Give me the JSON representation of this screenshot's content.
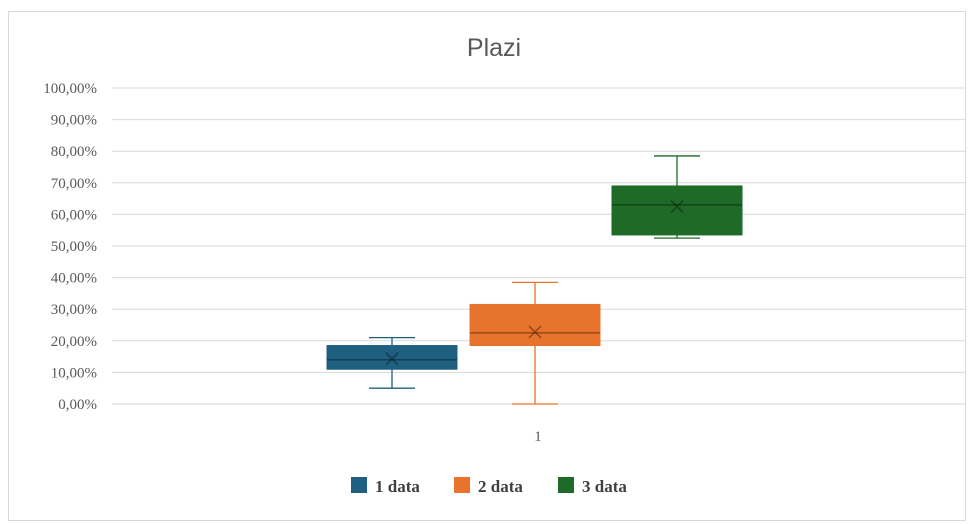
{
  "chart_data": {
    "type": "box",
    "title": "Plazi",
    "xlabel": "",
    "ylabel": "",
    "categories": [
      "1"
    ],
    "y_ticks": [
      "0,00%",
      "10,00%",
      "20,00%",
      "30,00%",
      "40,00%",
      "50,00%",
      "60,00%",
      "70,00%",
      "80,00%",
      "90,00%",
      "100,00%"
    ],
    "ylim": [
      0,
      100
    ],
    "grid": true,
    "legend_position": "bottom",
    "series": [
      {
        "name": "1 data",
        "color": "#1f5f7f",
        "min": 5,
        "q1": 11,
        "median": 14,
        "mean": 14.3,
        "q3": 18.5,
        "max": 21
      },
      {
        "name": "2 data",
        "color": "#e8732c",
        "min": 0,
        "q1": 18.5,
        "median": 22.5,
        "mean": 22.8,
        "q3": 31.5,
        "max": 38.5
      },
      {
        "name": "3 data",
        "color": "#1e6b27",
        "min": 52.5,
        "q1": 53.5,
        "median": 63,
        "mean": 62.5,
        "q3": 69,
        "max": 78.5
      }
    ]
  }
}
